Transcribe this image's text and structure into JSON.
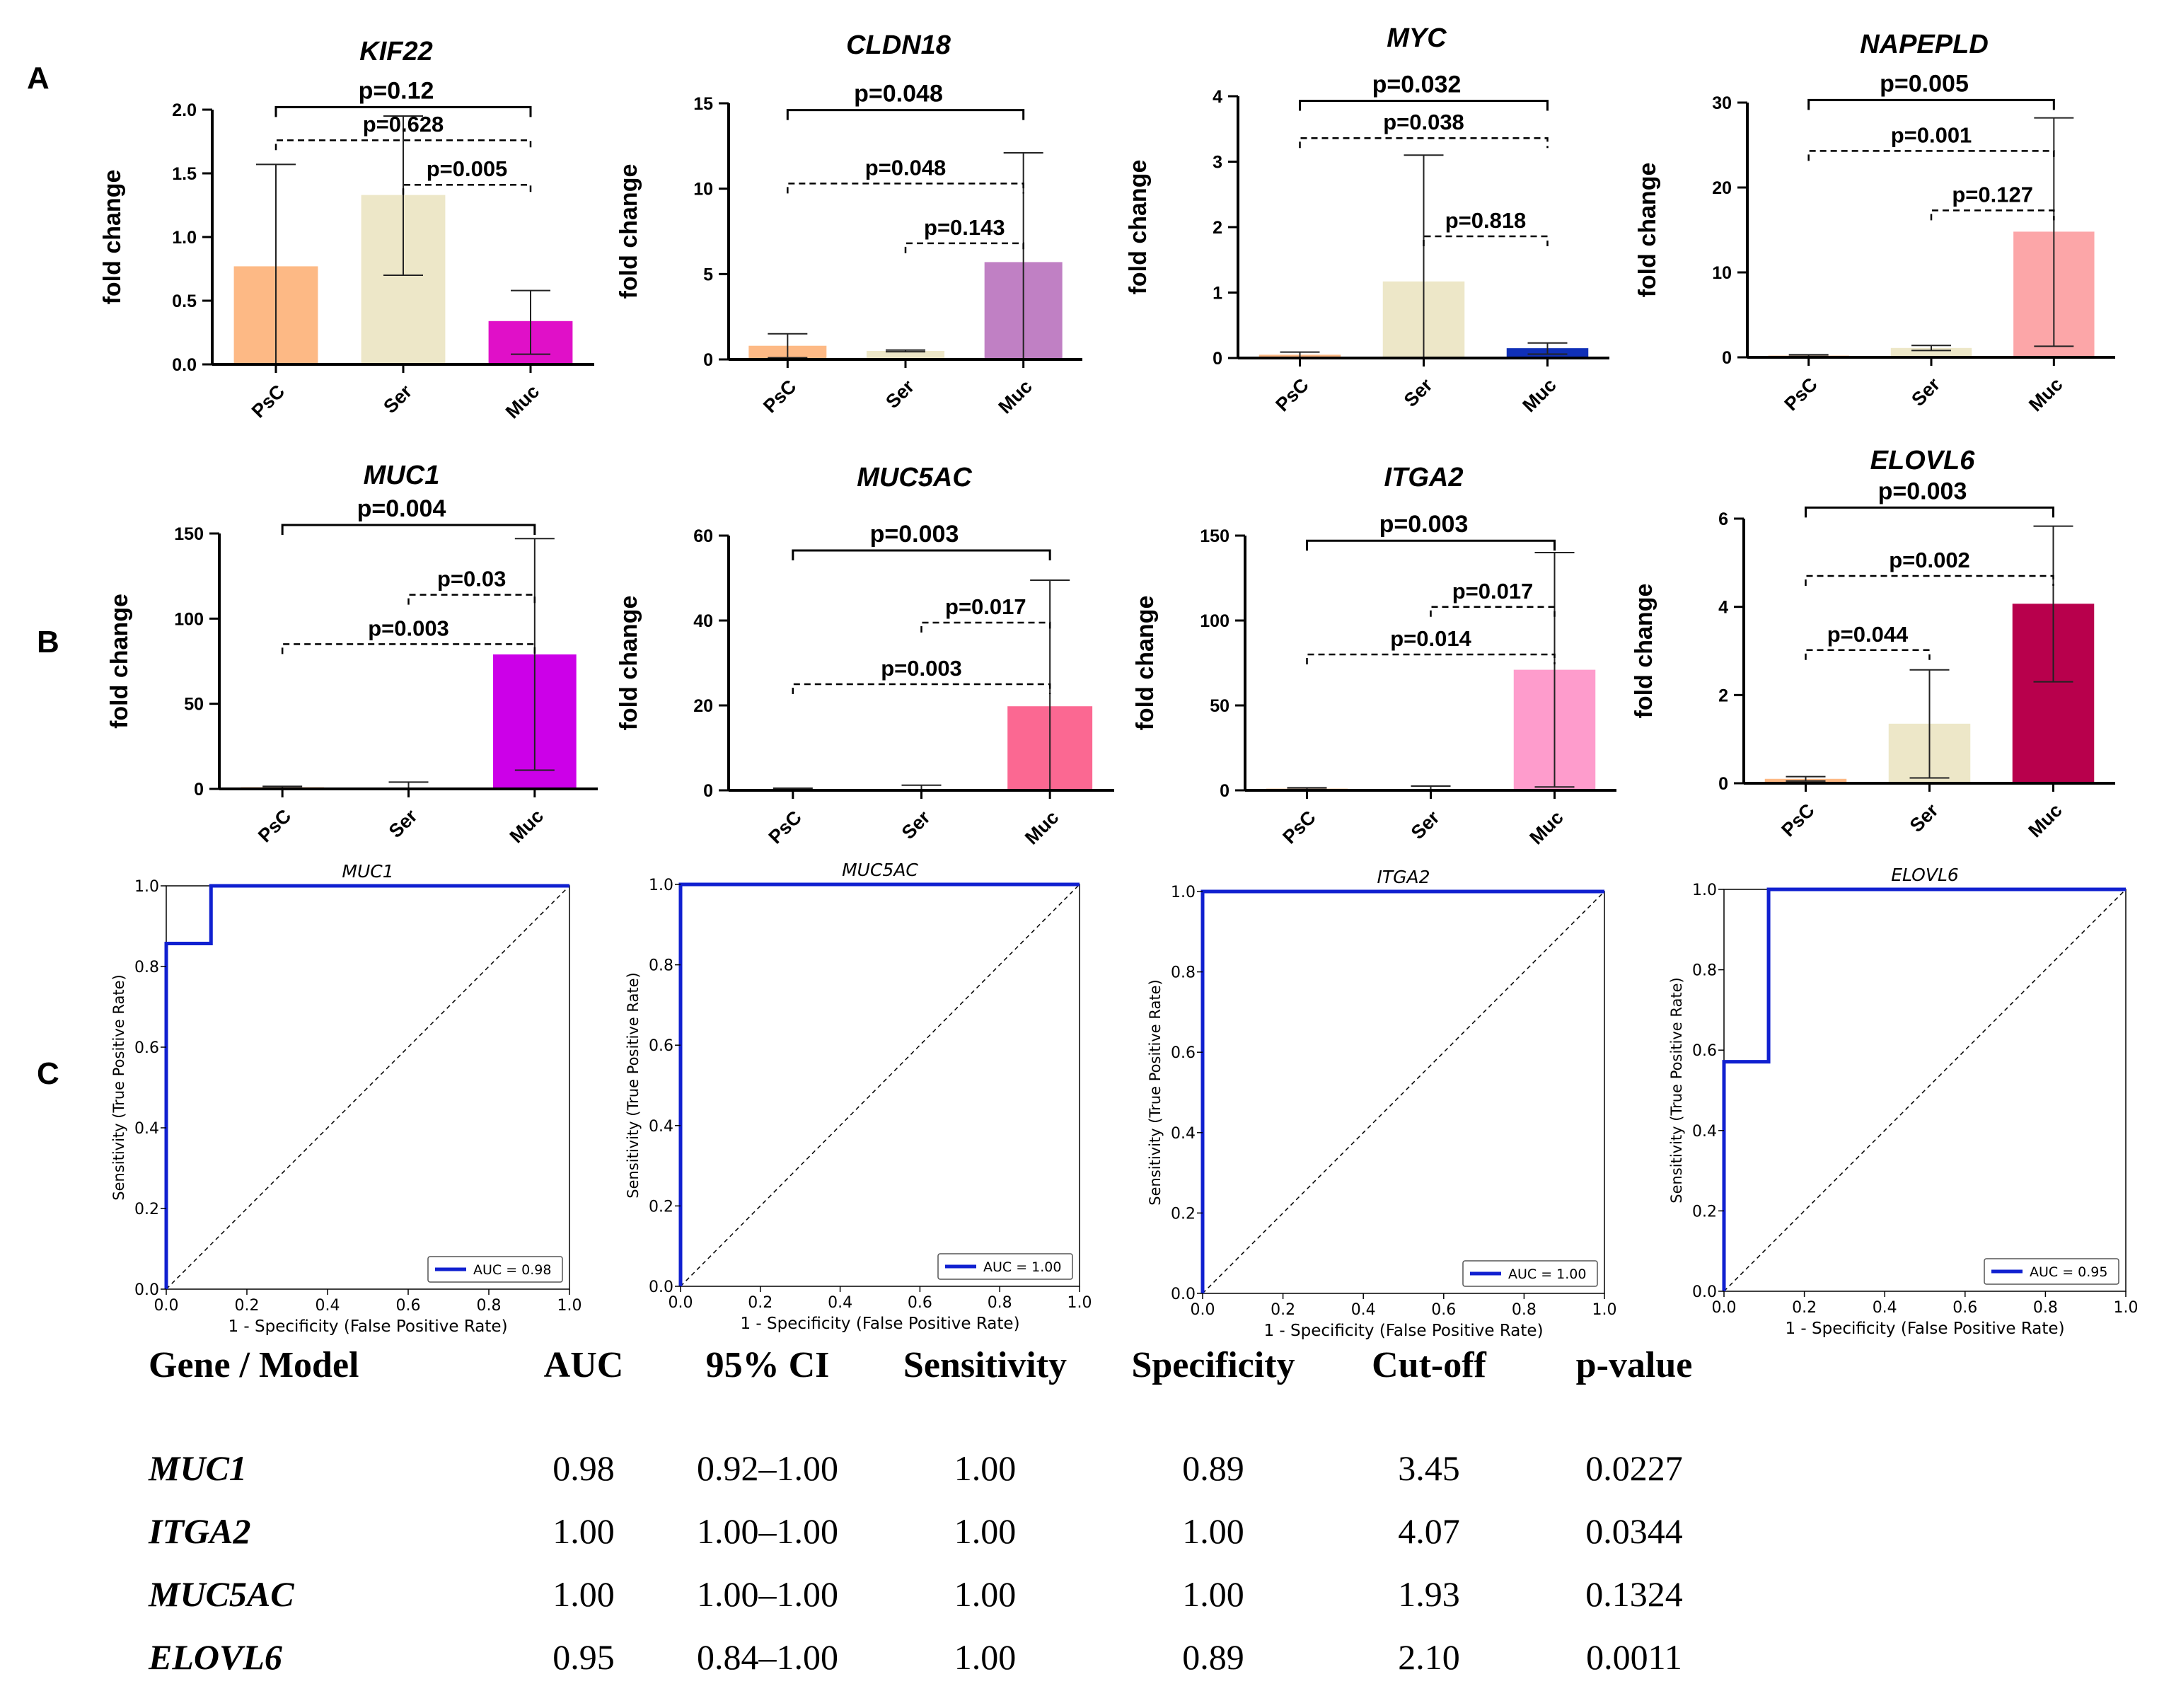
{
  "panel_labels": [
    "A",
    "B",
    "C"
  ],
  "chart_data": [
    {
      "id": "kif22",
      "type": "bar",
      "title": "KIF22",
      "panel": "A",
      "ylabel": "fold change",
      "ylim": [
        0,
        2.0
      ],
      "yticks": [
        "0.0",
        "0.5",
        "1.0",
        "1.5",
        "2.0"
      ],
      "ytick_values": [
        0,
        0.5,
        1.0,
        1.5,
        2.0
      ],
      "categories": [
        "PsC",
        "Ser",
        "Muc"
      ],
      "values": [
        0.77,
        1.33,
        0.34
      ],
      "err_low": [
        0.0,
        0.7,
        0.08
      ],
      "err_high": [
        1.57,
        1.95,
        0.58
      ],
      "colors": [
        "#fdb985",
        "#ede7c8",
        "#e010c8"
      ],
      "comparisons": [
        {
          "label": "p=0.12",
          "from": 0,
          "to": 2,
          "bold": true,
          "dashed": false,
          "level": 2.02
        },
        {
          "label": "p=0.628",
          "from": 0,
          "to": 2,
          "bold": false,
          "dashed": true,
          "level": 1.76
        },
        {
          "label": "p=0.005",
          "from": 1,
          "to": 2,
          "bold": false,
          "dashed": true,
          "level": 1.41
        }
      ]
    },
    {
      "id": "cldn18",
      "type": "bar",
      "title": "CLDN18",
      "panel": "A",
      "ylabel": "fold change",
      "ylim": [
        0,
        15
      ],
      "yticks": [
        "0",
        "5",
        "10",
        "15"
      ],
      "ytick_values": [
        0,
        5,
        10,
        15
      ],
      "categories": [
        "PsC",
        "Ser",
        "Muc"
      ],
      "values": [
        0.8,
        0.5,
        5.7
      ],
      "err_low": [
        0.1,
        0.45,
        0.0
      ],
      "err_high": [
        1.5,
        0.55,
        12.1
      ],
      "colors": [
        "#fdb985",
        "#ede7c8",
        "#c080c4"
      ],
      "comparisons": [
        {
          "label": "p=0.048",
          "from": 0,
          "to": 2,
          "bold": true,
          "dashed": false,
          "level": 14.6
        },
        {
          "label": "p=0.048",
          "from": 0,
          "to": 2,
          "bold": false,
          "dashed": true,
          "level": 10.3
        },
        {
          "label": "p=0.143",
          "from": 1,
          "to": 2,
          "bold": false,
          "dashed": true,
          "level": 6.8
        }
      ]
    },
    {
      "id": "myc",
      "type": "bar",
      "title": "MYC",
      "panel": "A",
      "ylabel": "fold change",
      "ylim": [
        0,
        4
      ],
      "yticks": [
        "0",
        "1",
        "2",
        "3",
        "4"
      ],
      "ytick_values": [
        0,
        1,
        2,
        3,
        4
      ],
      "categories": [
        "PsC",
        "Ser",
        "Muc"
      ],
      "values": [
        0.05,
        1.17,
        0.15
      ],
      "err_low": [
        0.0,
        0.0,
        0.06
      ],
      "err_high": [
        0.09,
        3.1,
        0.23
      ],
      "colors": [
        "#fdb985",
        "#ede7c8",
        "#1030b8"
      ],
      "comparisons": [
        {
          "label": "p=0.032",
          "from": 0,
          "to": 2,
          "bold": true,
          "dashed": false,
          "level": 3.93
        },
        {
          "label": "p=0.038",
          "from": 0,
          "to": 2,
          "bold": false,
          "dashed": true,
          "level": 3.36
        },
        {
          "label": "p=0.818",
          "from": 1,
          "to": 2,
          "bold": false,
          "dashed": true,
          "level": 1.86
        }
      ]
    },
    {
      "id": "napepld",
      "type": "bar",
      "title": "NAPEPLD",
      "panel": "A",
      "ylabel": "fold change",
      "ylim": [
        0,
        30
      ],
      "yticks": [
        "0",
        "10",
        "20",
        "30"
      ],
      "ytick_values": [
        0,
        10,
        20,
        30
      ],
      "categories": [
        "PsC",
        "Ser",
        "Muc"
      ],
      "values": [
        0.2,
        1.1,
        14.8
      ],
      "err_low": [
        0.1,
        0.8,
        1.3
      ],
      "err_high": [
        0.3,
        1.4,
        28.2
      ],
      "colors": [
        "#fdb985",
        "#ede7c8",
        "#fca6a8"
      ],
      "comparisons": [
        {
          "label": "p=0.005",
          "from": 0,
          "to": 2,
          "bold": true,
          "dashed": false,
          "level": 30.3
        },
        {
          "label": "p=0.001",
          "from": 0,
          "to": 2,
          "bold": false,
          "dashed": true,
          "level": 24.3
        },
        {
          "label": "p=0.127",
          "from": 1,
          "to": 2,
          "bold": false,
          "dashed": true,
          "level": 17.3
        }
      ]
    },
    {
      "id": "muc1",
      "type": "bar",
      "title": "MUC1",
      "panel": "B",
      "ylabel": "fold change",
      "ylim": [
        0,
        150
      ],
      "yticks": [
        "0",
        "50",
        "100",
        "150"
      ],
      "ytick_values": [
        0,
        50,
        100,
        150
      ],
      "categories": [
        "PsC",
        "Ser",
        "Muc"
      ],
      "values": [
        1.0,
        0.5,
        79
      ],
      "err_low": [
        0.5,
        0.0,
        11
      ],
      "err_high": [
        1.5,
        4.0,
        147
      ],
      "colors": [
        "#fdb985",
        "#ede7c8",
        "#cc00e8"
      ],
      "comparisons": [
        {
          "label": "p=0.004",
          "from": 0,
          "to": 2,
          "bold": true,
          "dashed": false,
          "level": 155
        },
        {
          "label": "p=0.03",
          "from": 1,
          "to": 2,
          "bold": false,
          "dashed": true,
          "level": 114
        },
        {
          "label": "p=0.003",
          "from": 0,
          "to": 2,
          "bold": false,
          "dashed": true,
          "level": 85
        }
      ]
    },
    {
      "id": "muc5ac",
      "type": "bar",
      "title": "MUC5AC",
      "panel": "B",
      "ylabel": "fold change",
      "ylim": [
        0,
        60
      ],
      "yticks": [
        "0",
        "20",
        "40",
        "60"
      ],
      "ytick_values": [
        0,
        20,
        40,
        60
      ],
      "categories": [
        "PsC",
        "Ser",
        "Muc"
      ],
      "values": [
        0.3,
        0.3,
        19.8
      ],
      "err_low": [
        0.1,
        0.0,
        0.0
      ],
      "err_high": [
        0.5,
        1.2,
        49.5
      ],
      "colors": [
        "#fdb985",
        "#ede7c8",
        "#fb6892"
      ],
      "comparisons": [
        {
          "label": "p=0.003",
          "from": 0,
          "to": 2,
          "bold": true,
          "dashed": false,
          "level": 56.5
        },
        {
          "label": "p=0.017",
          "from": 1,
          "to": 2,
          "bold": false,
          "dashed": true,
          "level": 39.5
        },
        {
          "label": "p=0.003",
          "from": 0,
          "to": 2,
          "bold": false,
          "dashed": true,
          "level": 25
        }
      ]
    },
    {
      "id": "itga2",
      "type": "bar",
      "title": "ITGA2",
      "panel": "B",
      "ylabel": "fold change",
      "ylim": [
        0,
        150
      ],
      "yticks": [
        "0",
        "50",
        "100",
        "150"
      ],
      "ytick_values": [
        0,
        50,
        100,
        150
      ],
      "categories": [
        "PsC",
        "Ser",
        "Muc"
      ],
      "values": [
        1.0,
        0.5,
        71
      ],
      "err_low": [
        0.5,
        0.0,
        2
      ],
      "err_high": [
        1.5,
        2.5,
        140
      ],
      "colors": [
        "#fdb985",
        "#ede7c8",
        "#fe9ccc"
      ],
      "comparisons": [
        {
          "label": "p=0.003",
          "from": 0,
          "to": 2,
          "bold": true,
          "dashed": false,
          "level": 147
        },
        {
          "label": "p=0.017",
          "from": 1,
          "to": 2,
          "bold": false,
          "dashed": true,
          "level": 108
        },
        {
          "label": "p=0.014",
          "from": 0,
          "to": 2,
          "bold": false,
          "dashed": true,
          "level": 80
        }
      ]
    },
    {
      "id": "elovl6",
      "type": "bar",
      "title": "ELOVL6",
      "panel": "B",
      "ylabel": "fold change",
      "ylim": [
        0,
        6
      ],
      "yticks": [
        "0",
        "2",
        "4",
        "6"
      ],
      "ytick_values": [
        0,
        2,
        4,
        6
      ],
      "categories": [
        "PsC",
        "Ser",
        "Muc"
      ],
      "values": [
        0.1,
        1.35,
        4.07
      ],
      "err_low": [
        0.05,
        0.12,
        2.3
      ],
      "err_high": [
        0.15,
        2.57,
        5.83
      ],
      "colors": [
        "#fdb985",
        "#ede7c8",
        "#b8004c"
      ],
      "comparisons": [
        {
          "label": "p=0.003",
          "from": 0,
          "to": 2,
          "bold": true,
          "dashed": false,
          "level": 6.25
        },
        {
          "label": "p=0.002",
          "from": 0,
          "to": 2,
          "bold": false,
          "dashed": true,
          "level": 4.7
        },
        {
          "label": "p=0.044",
          "from": 0,
          "to": 1,
          "bold": false,
          "dashed": true,
          "level": 3.02
        }
      ]
    },
    {
      "id": "roc-muc1",
      "type": "line",
      "title": "MUC1",
      "panel": "C",
      "xlabel": "1 - Specificity (False Positive Rate)",
      "ylabel": "Sensitivity (True Positive Rate)",
      "xlim": [
        0,
        1
      ],
      "ylim": [
        0,
        1
      ],
      "ticks": [
        "0.0",
        "0.2",
        "0.4",
        "0.6",
        "0.8",
        "1.0"
      ],
      "tick_values": [
        0,
        0.2,
        0.4,
        0.6,
        0.8,
        1.0
      ],
      "roc": [
        [
          0,
          0
        ],
        [
          0,
          0.857
        ],
        [
          0.111,
          0.857
        ],
        [
          0.111,
          1.0
        ],
        [
          1.0,
          1.0
        ]
      ],
      "legend": "AUC = 0.98",
      "line_color": "#1020d0"
    },
    {
      "id": "roc-muc5ac",
      "type": "line",
      "title": "MUC5AC",
      "panel": "C",
      "xlabel": "1 - Specificity (False Positive Rate)",
      "ylabel": "Sensitivity (True Positive Rate)",
      "xlim": [
        0,
        1
      ],
      "ylim": [
        0,
        1
      ],
      "ticks": [
        "0.0",
        "0.2",
        "0.4",
        "0.6",
        "0.8",
        "1.0"
      ],
      "tick_values": [
        0,
        0.2,
        0.4,
        0.6,
        0.8,
        1.0
      ],
      "roc": [
        [
          0,
          0
        ],
        [
          0,
          1.0
        ],
        [
          1.0,
          1.0
        ]
      ],
      "legend": "AUC = 1.00",
      "line_color": "#1020d0"
    },
    {
      "id": "roc-itga2",
      "type": "line",
      "title": "ITGA2",
      "panel": "C",
      "xlabel": "1 - Specificity (False Positive Rate)",
      "ylabel": "Sensitivity (True Positive Rate)",
      "xlim": [
        0,
        1
      ],
      "ylim": [
        0,
        1
      ],
      "ticks": [
        "0.0",
        "0.2",
        "0.4",
        "0.6",
        "0.8",
        "1.0"
      ],
      "tick_values": [
        0,
        0.2,
        0.4,
        0.6,
        0.8,
        1.0
      ],
      "roc": [
        [
          0,
          0
        ],
        [
          0,
          1.0
        ],
        [
          1.0,
          1.0
        ]
      ],
      "legend": "AUC = 1.00",
      "line_color": "#1020d0"
    },
    {
      "id": "roc-elovl6",
      "type": "line",
      "title": "ELOVL6",
      "panel": "C",
      "xlabel": "1 - Specificity (False Positive Rate)",
      "ylabel": "Sensitivity (True Positive Rate)",
      "xlim": [
        0,
        1
      ],
      "ylim": [
        0,
        1
      ],
      "ticks": [
        "0.0",
        "0.2",
        "0.4",
        "0.6",
        "0.8",
        "1.0"
      ],
      "tick_values": [
        0,
        0.2,
        0.4,
        0.6,
        0.8,
        1.0
      ],
      "roc": [
        [
          0,
          0
        ],
        [
          0,
          0.571
        ],
        [
          0.111,
          0.571
        ],
        [
          0.111,
          1.0
        ],
        [
          1.0,
          1.0
        ]
      ],
      "legend": "AUC = 0.95",
      "line_color": "#1020d0"
    }
  ],
  "summary_table": {
    "headers": [
      "Gene / Model",
      "AUC",
      "95% CI",
      "Sensitivity",
      "Specificity",
      "Cut-off",
      "p-value"
    ],
    "rows": [
      [
        "MUC1",
        "0.98",
        "0.92–1.00",
        "1.00",
        "0.89",
        "3.45",
        "0.0227"
      ],
      [
        "ITGA2",
        "1.00",
        "1.00–1.00",
        "1.00",
        "1.00",
        "4.07",
        "0.0344"
      ],
      [
        "MUC5AC",
        "1.00",
        "1.00–1.00",
        "1.00",
        "1.00",
        "1.93",
        "0.1324"
      ],
      [
        "ELOVL6",
        "0.95",
        "0.84–1.00",
        "1.00",
        "0.89",
        "2.10",
        "0.0011"
      ]
    ]
  }
}
